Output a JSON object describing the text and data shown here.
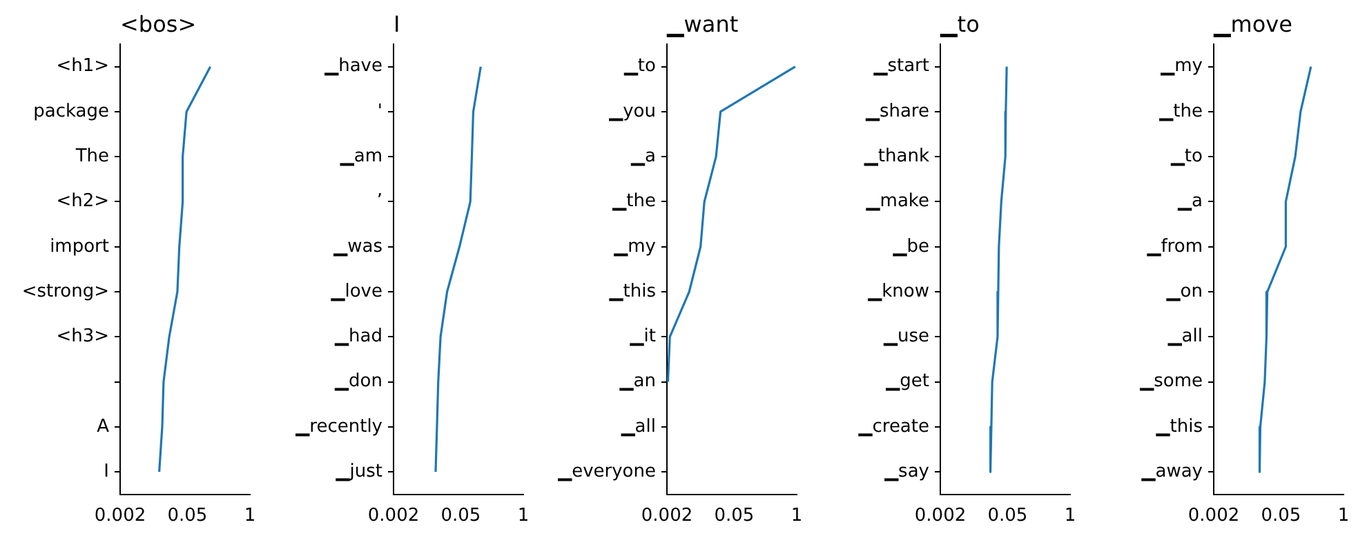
{
  "chart_data": [
    {
      "type": "line",
      "title": "<bos>",
      "orientation": "horizontal",
      "log": "x",
      "marker": "none",
      "line_style": "solid",
      "categories": [
        "<h1>",
        "package",
        "The",
        "<h2>",
        "import",
        "<strong>",
        "<h3>",
        null,
        "A",
        "I"
      ],
      "series": [
        {
          "color": "#1f77b4",
          "values": [
            0.15,
            0.048,
            0.04,
            0.04,
            0.034,
            0.031,
            0.021,
            0.016,
            0.015,
            0.013
          ]
        }
      ],
      "xlim": [
        0.002,
        1
      ],
      "xticks": [
        0.002,
        0.05,
        1
      ]
    },
    {
      "type": "line",
      "title": "I",
      "orientation": "horizontal",
      "log": "x",
      "marker": "none",
      "line_style": "solid",
      "categories": [
        "▁have",
        "'",
        "▁am",
        "’",
        "▁was",
        "▁love",
        "▁had",
        "▁don",
        "▁recently",
        "▁just"
      ],
      "series": [
        {
          "color": "#1f77b4",
          "values": [
            0.13,
            0.091,
            0.085,
            0.079,
            0.047,
            0.026,
            0.019,
            0.017,
            0.016,
            0.015
          ]
        }
      ],
      "xlim": [
        0.002,
        1
      ],
      "xticks": [
        0.002,
        0.05,
        1
      ]
    },
    {
      "type": "line",
      "title": "▁want",
      "orientation": "horizontal",
      "log": "x",
      "marker": "none",
      "line_style": "solid",
      "categories": [
        "▁to",
        "▁you",
        "▁a",
        "▁the",
        "▁my",
        "▁this",
        "▁it",
        "▁an",
        "▁all",
        "▁everyone"
      ],
      "series": [
        {
          "color": "#1f77b4",
          "values": [
            0.93,
            0.026,
            0.021,
            0.012,
            0.01,
            0.0058,
            0.0023,
            0.0021,
            null,
            null
          ]
        }
      ],
      "xlim": [
        0.002,
        1
      ],
      "xticks": [
        0.002,
        0.05,
        1
      ]
    },
    {
      "type": "line",
      "title": "▁to",
      "orientation": "horizontal",
      "log": "x",
      "marker": "none",
      "line_style": "solid",
      "categories": [
        "▁start",
        "▁share",
        "▁thank",
        "▁make",
        "▁be",
        "▁know",
        "▁use",
        "▁get",
        "▁create",
        "▁say"
      ],
      "series": [
        {
          "color": "#1f77b4",
          "values": [
            0.048,
            0.046,
            0.045,
            0.037,
            0.033,
            0.032,
            0.031,
            0.024,
            0.023,
            0.022
          ]
        }
      ],
      "xlim": [
        0.002,
        1
      ],
      "xticks": [
        0.002,
        0.05,
        1
      ]
    },
    {
      "type": "line",
      "title": "▁move",
      "orientation": "horizontal",
      "log": "x",
      "marker": "none",
      "line_style": "solid",
      "categories": [
        "▁my",
        "▁the",
        "▁to",
        "▁a",
        "▁from",
        "▁on",
        "▁all",
        "▁some",
        "▁this",
        "▁away"
      ],
      "series": [
        {
          "color": "#1f77b4",
          "values": [
            0.21,
            0.128,
            0.099,
            0.063,
            0.063,
            0.026,
            0.025,
            0.023,
            0.0186,
            0.018
          ]
        }
      ],
      "xlim": [
        0.002,
        1
      ],
      "xticks": [
        0.002,
        0.05,
        1
      ]
    }
  ]
}
